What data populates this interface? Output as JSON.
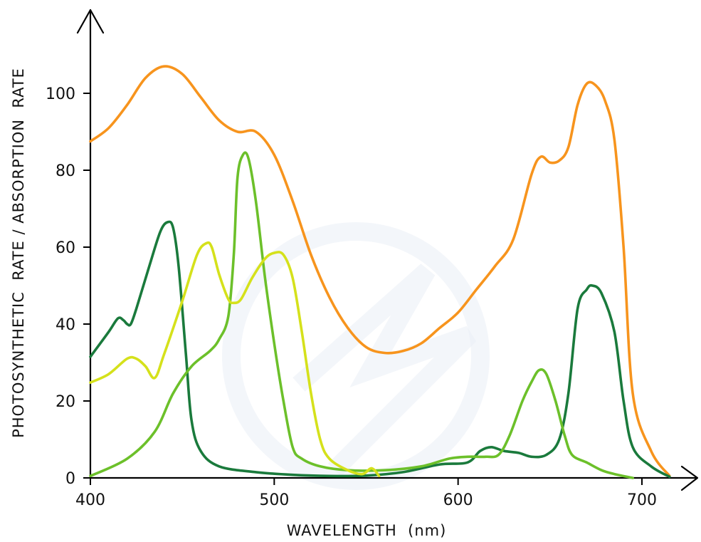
{
  "chart_data": {
    "type": "line",
    "xlabel": "WAVELENGTH  (nm)",
    "ylabel": "PHOTOSYNTHETIC  RATE / ABSORPTION  RATE",
    "xlim": [
      400,
      720
    ],
    "ylim": [
      0,
      110
    ],
    "x_ticks": [
      {
        "value": 400,
        "label": "400"
      },
      {
        "value": 500,
        "label": "500"
      },
      {
        "value": 600,
        "label": "600"
      },
      {
        "value": 700,
        "label": "700"
      }
    ],
    "y_ticks": [
      {
        "value": 0,
        "label": "0"
      },
      {
        "value": 20,
        "label": "20"
      },
      {
        "value": 40,
        "label": "40"
      },
      {
        "value": 60,
        "label": "60"
      },
      {
        "value": 80,
        "label": "80"
      },
      {
        "value": 100,
        "label": "100"
      }
    ],
    "grid": false,
    "legend": "none",
    "series": [
      {
        "color": "#f7941d",
        "points": [
          [
            400,
            87.5
          ],
          [
            410,
            91
          ],
          [
            420,
            97
          ],
          [
            430,
            104
          ],
          [
            440,
            107
          ],
          [
            450,
            105
          ],
          [
            460,
            99
          ],
          [
            470,
            93
          ],
          [
            480,
            90
          ],
          [
            490,
            90
          ],
          [
            500,
            84
          ],
          [
            510,
            72
          ],
          [
            520,
            58
          ],
          [
            530,
            47
          ],
          [
            540,
            39
          ],
          [
            550,
            34
          ],
          [
            560,
            32.5
          ],
          [
            570,
            33
          ],
          [
            580,
            35
          ],
          [
            590,
            39
          ],
          [
            600,
            43
          ],
          [
            610,
            49
          ],
          [
            620,
            55
          ],
          [
            630,
            62
          ],
          [
            640,
            79
          ],
          [
            645,
            83.5
          ],
          [
            650,
            82
          ],
          [
            655,
            82.5
          ],
          [
            660,
            86
          ],
          [
            665,
            97
          ],
          [
            670,
            102.5
          ],
          [
            675,
            102
          ],
          [
            680,
            98
          ],
          [
            685,
            88
          ],
          [
            690,
            60
          ],
          [
            695,
            22
          ],
          [
            705,
            7
          ],
          [
            715,
            0.5
          ]
        ]
      },
      {
        "color": "#1a7a3c",
        "points": [
          [
            400,
            31.5
          ],
          [
            410,
            38
          ],
          [
            415,
            41.5
          ],
          [
            418,
            41
          ],
          [
            420,
            40
          ],
          [
            422,
            40
          ],
          [
            425,
            44
          ],
          [
            432,
            55
          ],
          [
            438,
            64
          ],
          [
            442,
            66.5
          ],
          [
            445,
            65
          ],
          [
            448,
            55
          ],
          [
            452,
            32
          ],
          [
            455,
            15
          ],
          [
            460,
            7
          ],
          [
            470,
            3
          ],
          [
            490,
            1.5
          ],
          [
            510,
            0.8
          ],
          [
            530,
            0.5
          ],
          [
            550,
            0.6
          ],
          [
            570,
            1.5
          ],
          [
            590,
            3.5
          ],
          [
            605,
            4
          ],
          [
            612,
            7
          ],
          [
            618,
            8
          ],
          [
            625,
            7
          ],
          [
            633,
            6.5
          ],
          [
            640,
            5.5
          ],
          [
            648,
            6
          ],
          [
            655,
            10
          ],
          [
            660,
            22
          ],
          [
            665,
            44
          ],
          [
            670,
            49
          ],
          [
            673,
            50
          ],
          [
            678,
            48
          ],
          [
            685,
            38
          ],
          [
            690,
            20
          ],
          [
            695,
            8
          ],
          [
            705,
            3
          ],
          [
            715,
            0.3
          ]
        ]
      },
      {
        "color": "#6cc02a",
        "points": [
          [
            400,
            0.5
          ],
          [
            420,
            5
          ],
          [
            435,
            12
          ],
          [
            445,
            22
          ],
          [
            455,
            29
          ],
          [
            465,
            33
          ],
          [
            470,
            36
          ],
          [
            475,
            42
          ],
          [
            478,
            58
          ],
          [
            480,
            78
          ],
          [
            483,
            84
          ],
          [
            486,
            83
          ],
          [
            490,
            72
          ],
          [
            495,
            52
          ],
          [
            500,
            35
          ],
          [
            505,
            20
          ],
          [
            510,
            8
          ],
          [
            515,
            5
          ],
          [
            525,
            3
          ],
          [
            540,
            2
          ],
          [
            560,
            2
          ],
          [
            580,
            3
          ],
          [
            595,
            5
          ],
          [
            605,
            5.5
          ],
          [
            615,
            5.5
          ],
          [
            622,
            6
          ],
          [
            628,
            11
          ],
          [
            635,
            20
          ],
          [
            640,
            25
          ],
          [
            644,
            28
          ],
          [
            648,
            27
          ],
          [
            653,
            20
          ],
          [
            658,
            11
          ],
          [
            662,
            6
          ],
          [
            670,
            4
          ],
          [
            678,
            2
          ],
          [
            685,
            1
          ],
          [
            695,
            0
          ]
        ]
      },
      {
        "color": "#d5e11b",
        "points": [
          [
            400,
            24.8
          ],
          [
            410,
            27
          ],
          [
            420,
            31
          ],
          [
            425,
            31
          ],
          [
            430,
            29
          ],
          [
            435,
            26
          ],
          [
            440,
            32
          ],
          [
            450,
            46
          ],
          [
            458,
            58
          ],
          [
            463,
            61
          ],
          [
            466,
            60
          ],
          [
            470,
            53
          ],
          [
            475,
            46.5
          ],
          [
            478,
            45.5
          ],
          [
            482,
            46.5
          ],
          [
            488,
            52
          ],
          [
            495,
            57
          ],
          [
            500,
            58.5
          ],
          [
            505,
            58
          ],
          [
            510,
            52
          ],
          [
            515,
            38
          ],
          [
            520,
            22
          ],
          [
            525,
            10
          ],
          [
            530,
            5
          ],
          [
            540,
            2
          ],
          [
            548,
            1
          ],
          [
            553,
            2.5
          ],
          [
            557,
            0.5
          ]
        ]
      }
    ]
  }
}
